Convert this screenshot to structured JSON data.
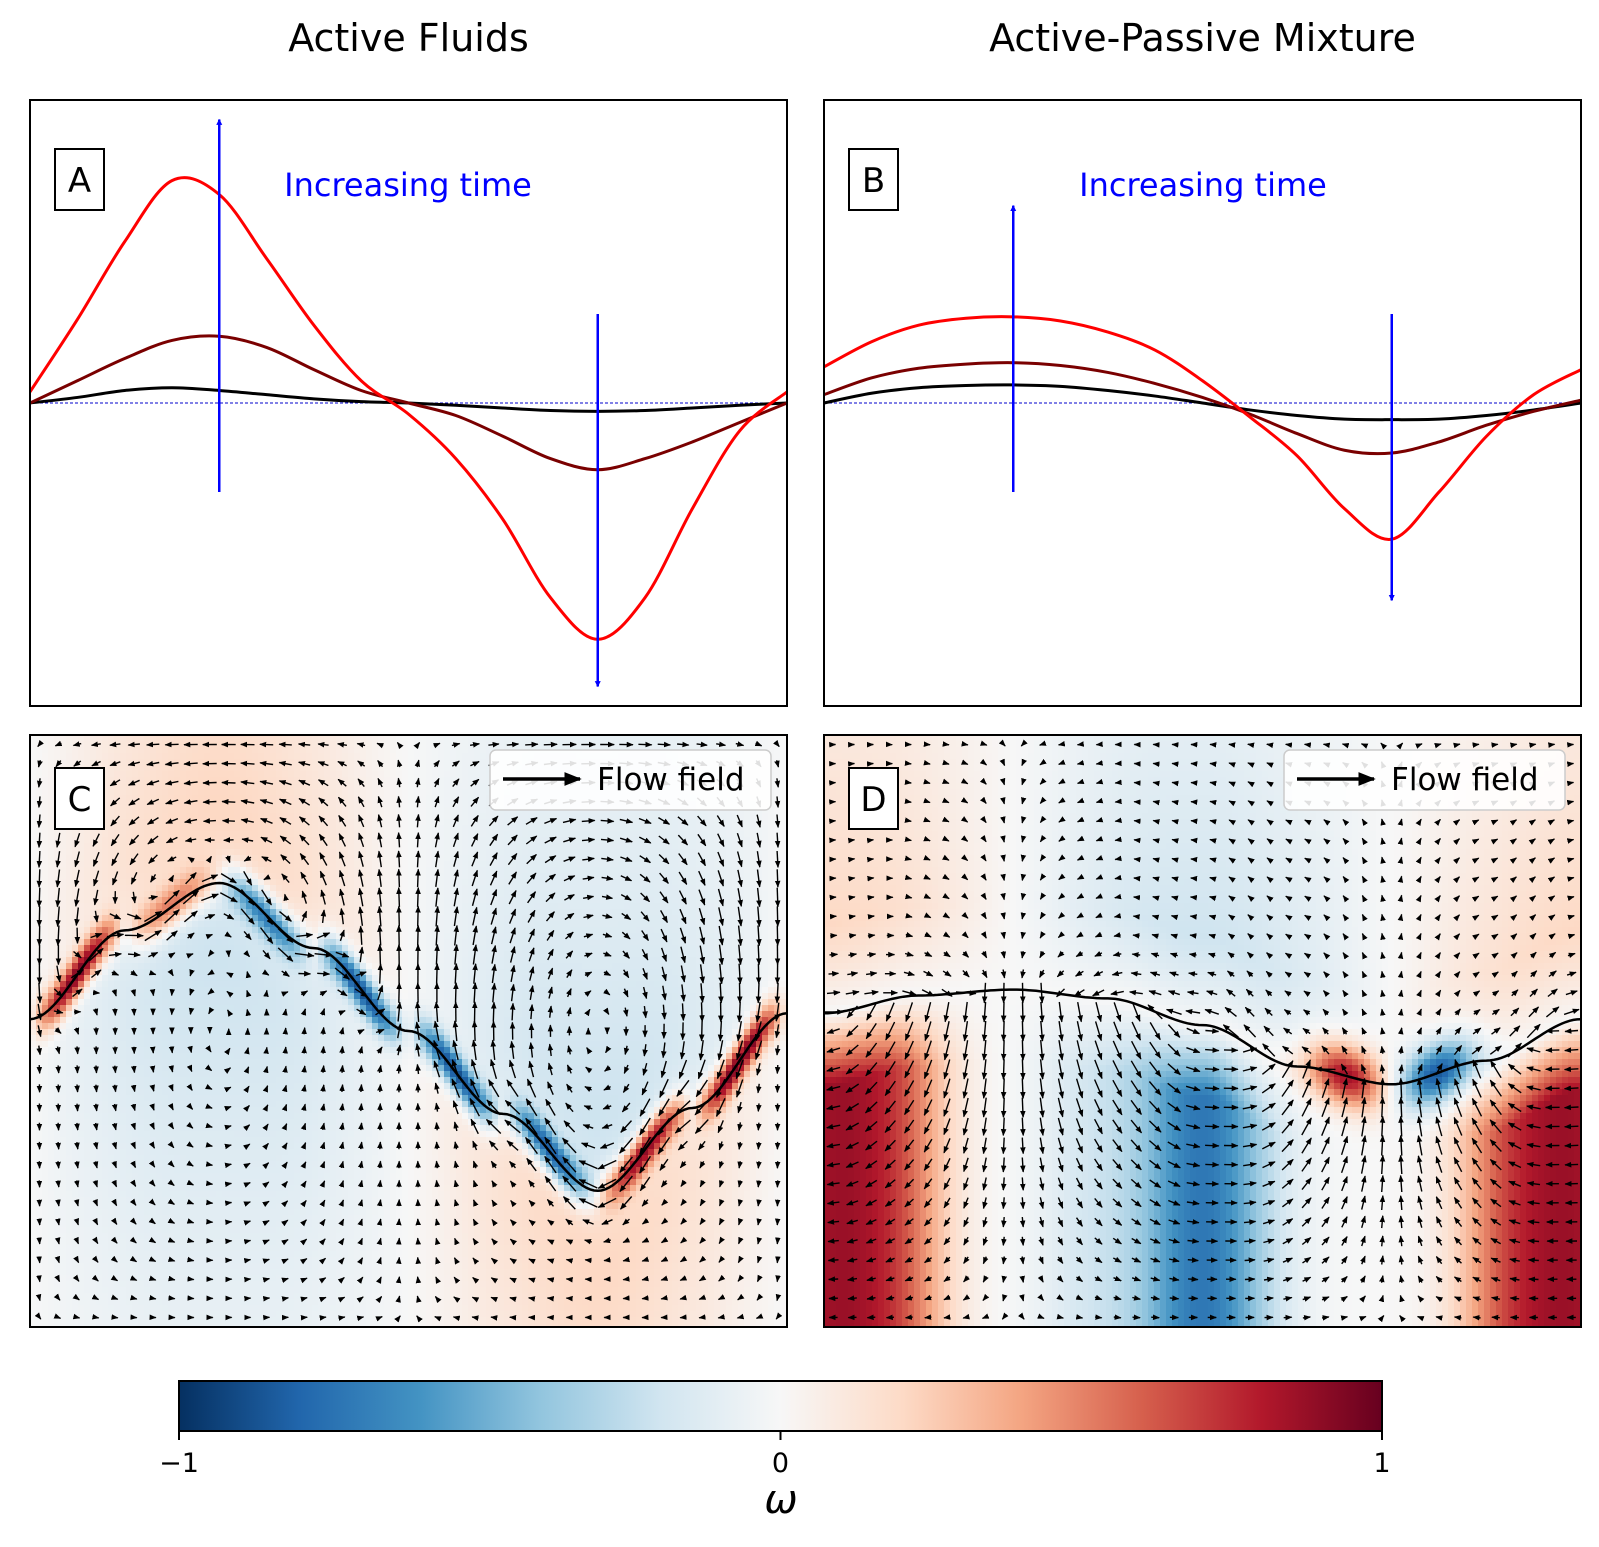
{
  "columns": [
    {
      "title": "Active Fluids"
    },
    {
      "title": "Active-Passive Mixture"
    }
  ],
  "colors": {
    "curve_early": "#000000",
    "curve_mid": "#7a0000",
    "curve_late": "#ff0000",
    "arrow": "#0000ff",
    "annotation": "#0000ff",
    "baseline": "#0000cc"
  },
  "chart_data": [
    {
      "type": "line",
      "panel_label": "A",
      "annotation": "Increasing time",
      "x": [
        0,
        0.0625,
        0.125,
        0.1875,
        0.25,
        0.3125,
        0.375,
        0.4375,
        0.5,
        0.5625,
        0.625,
        0.6875,
        0.75,
        0.8125,
        0.875,
        0.9375,
        1
      ],
      "series": [
        {
          "values": [
            0,
            0.02,
            0.045,
            0.055,
            0.045,
            0.03,
            0.015,
            0.005,
            0,
            -0.008,
            -0.018,
            -0.027,
            -0.03,
            -0.027,
            -0.018,
            -0.008,
            0
          ]
        },
        {
          "values": [
            0,
            0.08,
            0.16,
            0.225,
            0.24,
            0.2,
            0.12,
            0.045,
            0,
            -0.045,
            -0.12,
            -0.2,
            -0.24,
            -0.2,
            -0.14,
            -0.07,
            0
          ]
        },
        {
          "values": [
            0.04,
            0.3,
            0.58,
            0.8,
            0.75,
            0.52,
            0.28,
            0.08,
            -0.04,
            -0.2,
            -0.42,
            -0.7,
            -0.85,
            -0.7,
            -0.38,
            -0.1,
            0.04
          ]
        }
      ],
      "arrows": [
        {
          "x": 0.25,
          "from": -0.32,
          "to": 1.02,
          "direction": "up"
        },
        {
          "x": 0.75,
          "from": 0.32,
          "to": -1.02,
          "direction": "down"
        }
      ],
      "baseline": 0,
      "xlim": [
        0,
        1
      ],
      "ylim": [
        -1.09,
        1.09
      ]
    },
    {
      "type": "line",
      "panel_label": "B",
      "annotation": "Increasing time",
      "x": [
        0,
        0.0625,
        0.125,
        0.1875,
        0.25,
        0.3125,
        0.375,
        0.4375,
        0.5,
        0.5625,
        0.625,
        0.6875,
        0.75,
        0.8125,
        0.875,
        0.9375,
        1
      ],
      "series": [
        {
          "values": [
            0,
            0.035,
            0.055,
            0.063,
            0.065,
            0.06,
            0.045,
            0.025,
            0,
            -0.025,
            -0.045,
            -0.058,
            -0.06,
            -0.058,
            -0.045,
            -0.025,
            0
          ]
        },
        {
          "values": [
            0.03,
            0.09,
            0.125,
            0.14,
            0.145,
            0.135,
            0.11,
            0.07,
            0.02,
            -0.04,
            -0.11,
            -0.17,
            -0.18,
            -0.14,
            -0.08,
            -0.03,
            0.01
          ]
        },
        {
          "values": [
            0.13,
            0.22,
            0.28,
            0.305,
            0.31,
            0.295,
            0.255,
            0.19,
            0.08,
            -0.05,
            -0.19,
            -0.38,
            -0.49,
            -0.32,
            -0.12,
            0.03,
            0.12
          ]
        }
      ],
      "arrows": [
        {
          "x": 0.25,
          "from": -0.32,
          "to": 0.71,
          "direction": "up"
        },
        {
          "x": 0.75,
          "from": 0.32,
          "to": -0.71,
          "direction": "down"
        }
      ],
      "baseline": 0,
      "xlim": [
        0,
        1
      ],
      "ylim": [
        -1.09,
        1.09
      ]
    },
    {
      "type": "heatmap",
      "panel_label": "C",
      "legend": {
        "label": "Flow field",
        "position": "top-right"
      },
      "interface": {
        "x": [
          0,
          0.125,
          0.25,
          0.375,
          0.5,
          0.625,
          0.75,
          0.875,
          1
        ],
        "y": [
          0.52,
          0.67,
          0.75,
          0.64,
          0.5,
          0.36,
          0.23,
          0.37,
          0.53
        ]
      },
      "extrema_x": [
        0.25,
        0.75
      ],
      "sign": 1
    },
    {
      "type": "heatmap",
      "panel_label": "D",
      "legend": {
        "label": "Flow field",
        "position": "top-right"
      },
      "interface": {
        "x": [
          0,
          0.125,
          0.25,
          0.375,
          0.5,
          0.625,
          0.75,
          0.875,
          1
        ],
        "y": [
          0.53,
          0.56,
          0.57,
          0.555,
          0.51,
          0.44,
          0.41,
          0.45,
          0.52
        ]
      },
      "extrema_x": [
        0.25,
        0.75
      ],
      "sign": 1
    },
    {
      "type": "colorbar",
      "label": "ω",
      "ticks": [
        -1,
        0,
        1
      ],
      "tick_labels": [
        "−1",
        "0",
        "1"
      ],
      "range": [
        -1,
        1
      ],
      "colormap": [
        "#053061",
        "#2166ac",
        "#4393c3",
        "#92c5de",
        "#d1e5f0",
        "#f7f7f7",
        "#fddbc7",
        "#f4a582",
        "#d6604d",
        "#b2182b",
        "#67001f"
      ]
    }
  ]
}
